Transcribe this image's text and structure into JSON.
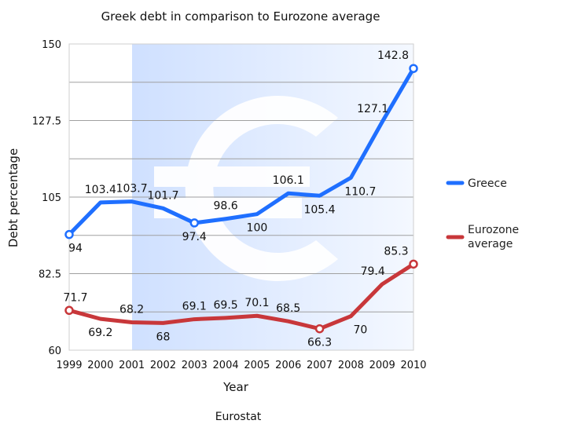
{
  "chart_data": {
    "type": "line",
    "title": "Greek debt in comparison to Eurozone average",
    "xlabel": "Year",
    "ylabel": "Debt percentage",
    "source": "Eurostat",
    "x": [
      "1999",
      "2000",
      "2001",
      "2002",
      "2003",
      "2004",
      "2005",
      "2006",
      "2007",
      "2008",
      "2009",
      "2010"
    ],
    "yticks": [
      "60",
      "82.5",
      "105",
      "127.5",
      "150"
    ],
    "ylim": [
      60,
      150
    ],
    "grid": "horizontal",
    "legend": "right",
    "series": [
      {
        "name": "Greece",
        "color": "#1f6fff",
        "values": [
          94,
          103.4,
          103.7,
          101.7,
          97.4,
          98.6,
          100,
          106.1,
          105.4,
          110.7,
          127.1,
          142.8
        ],
        "labels": [
          "94",
          "103.4",
          "103.7",
          "101.7",
          "97.4",
          "98.6",
          "100",
          "106.1",
          "105.4",
          "110.7",
          "127.1",
          "142.8"
        ]
      },
      {
        "name": "Eurozone average",
        "name_lines": [
          "Eurozone",
          "average"
        ],
        "color": "#c8373a",
        "values": [
          71.7,
          69.2,
          68.2,
          68,
          69.1,
          69.5,
          70.1,
          68.5,
          66.3,
          70,
          79.4,
          85.3
        ],
        "labels": [
          "71.7",
          "69.2",
          "68.2",
          "68",
          "69.1",
          "69.5",
          "70.1",
          "68.5",
          "66.3",
          "70",
          "79.4",
          "85.3"
        ]
      }
    ]
  }
}
